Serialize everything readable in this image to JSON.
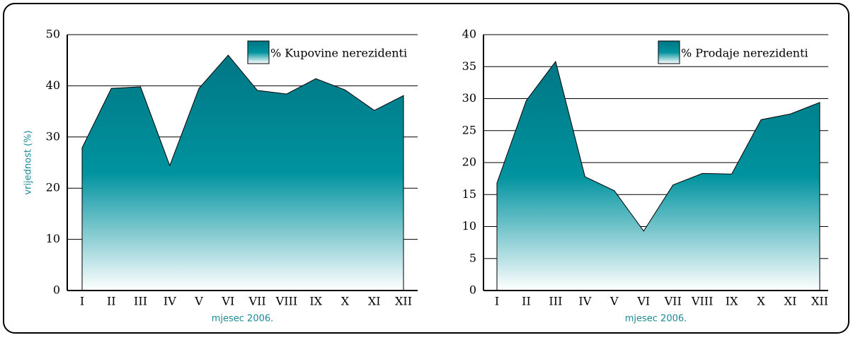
{
  "chart_data": [
    {
      "type": "area",
      "x_label": "mjesec 2006.",
      "y_label": "vrijednost (%)",
      "categories": [
        "I",
        "II",
        "III",
        "IV",
        "V",
        "VI",
        "VII",
        "VIII",
        "IX",
        "X",
        "XI",
        "XII"
      ],
      "series": [
        {
          "name": "% Kupovine nerezidenti",
          "color": "#00939f",
          "values": [
            27.9,
            39.5,
            39.8,
            24.4,
            39.5,
            46.0,
            39.1,
            38.4,
            41.4,
            39.2,
            35.2,
            38.1
          ]
        }
      ],
      "ylim": [
        0,
        50
      ],
      "yticks": [
        0,
        10,
        20,
        30,
        40,
        50
      ],
      "grid": true,
      "legend": "top-right"
    },
    {
      "type": "area",
      "x_label": "mjesec 2006.",
      "categories": [
        "I",
        "II",
        "III",
        "IV",
        "V",
        "VI",
        "VII",
        "VIII",
        "IX",
        "X",
        "XI",
        "XII"
      ],
      "series": [
        {
          "name": "% Prodaje nerezidenti",
          "color": "#00939f",
          "values": [
            16.8,
            29.7,
            35.8,
            17.8,
            15.6,
            9.3,
            16.5,
            18.3,
            18.2,
            26.7,
            27.6,
            29.4
          ]
        }
      ],
      "ylim": [
        0,
        40
      ],
      "yticks": [
        0,
        5,
        10,
        15,
        20,
        25,
        30,
        35,
        40
      ],
      "grid": true,
      "legend": "top-right"
    }
  ]
}
